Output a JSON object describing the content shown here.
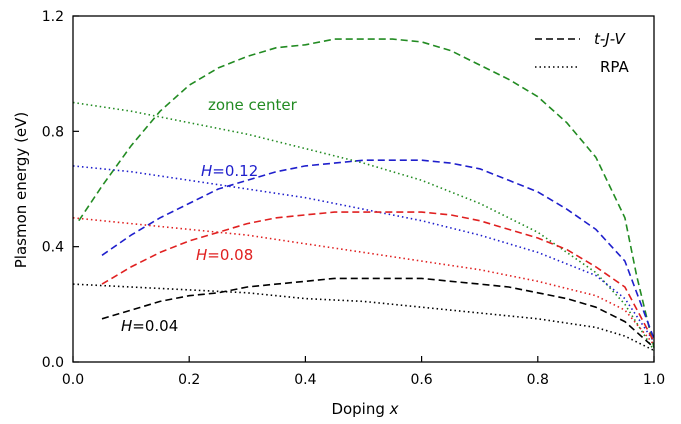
{
  "chart_data": {
    "type": "line",
    "xlabel_main": "Doping",
    "xlabel_var": "x",
    "ylabel": "Plasmon energy (eV)",
    "xlim": [
      0.0,
      1.0
    ],
    "ylim": [
      0.0,
      1.2
    ],
    "xticks": [
      "0.0",
      "0.2",
      "0.4",
      "0.6",
      "0.8",
      "1.0"
    ],
    "yticks": [
      "0.0",
      "0.4",
      "0.8",
      "1.2"
    ],
    "grid": false,
    "legend_position": "top-right",
    "legend": [
      {
        "label": "t-J-V",
        "style": "dashed"
      },
      {
        "label": "RPA",
        "style": "dotted"
      }
    ],
    "annotations": [
      {
        "text": "zone center",
        "color": "#228b22"
      },
      {
        "text_var": "H",
        "text_val": "=0.12",
        "color": "#1f1fcc"
      },
      {
        "text_var": "H",
        "text_val": "=0.08",
        "color": "#e02020"
      },
      {
        "text_var": "H",
        "text_val": "=0.04",
        "color": "#000000"
      }
    ],
    "series": [
      {
        "group": "zone center",
        "method": "t-J-V",
        "style": "dashed",
        "color": "#228b22",
        "x": [
          0.01,
          0.05,
          0.1,
          0.15,
          0.2,
          0.25,
          0.3,
          0.35,
          0.4,
          0.45,
          0.5,
          0.55,
          0.6,
          0.65,
          0.7,
          0.75,
          0.8,
          0.85,
          0.9,
          0.95,
          0.97,
          1.0
        ],
        "y": [
          0.49,
          0.61,
          0.75,
          0.87,
          0.96,
          1.02,
          1.06,
          1.09,
          1.1,
          1.12,
          1.12,
          1.12,
          1.11,
          1.08,
          1.03,
          0.98,
          0.92,
          0.83,
          0.71,
          0.5,
          0.3,
          0.05
        ]
      },
      {
        "group": "zone center",
        "method": "RPA",
        "style": "dotted",
        "color": "#228b22",
        "x": [
          0.0,
          0.1,
          0.2,
          0.3,
          0.4,
          0.5,
          0.6,
          0.7,
          0.8,
          0.9,
          0.95,
          1.0
        ],
        "y": [
          0.9,
          0.87,
          0.83,
          0.79,
          0.74,
          0.69,
          0.63,
          0.55,
          0.45,
          0.31,
          0.2,
          0.04
        ]
      },
      {
        "group": "H=0.12",
        "method": "t-J-V",
        "style": "dashed",
        "color": "#1f1fcc",
        "x": [
          0.05,
          0.1,
          0.15,
          0.2,
          0.25,
          0.3,
          0.35,
          0.4,
          0.45,
          0.5,
          0.55,
          0.6,
          0.65,
          0.7,
          0.75,
          0.8,
          0.85,
          0.9,
          0.95,
          1.0
        ],
        "y": [
          0.37,
          0.44,
          0.5,
          0.55,
          0.6,
          0.63,
          0.66,
          0.68,
          0.69,
          0.7,
          0.7,
          0.7,
          0.69,
          0.67,
          0.63,
          0.59,
          0.53,
          0.46,
          0.35,
          0.08
        ]
      },
      {
        "group": "H=0.12",
        "method": "RPA",
        "style": "dotted",
        "color": "#1f1fcc",
        "x": [
          0.0,
          0.1,
          0.2,
          0.3,
          0.4,
          0.5,
          0.6,
          0.7,
          0.8,
          0.9,
          0.95,
          1.0
        ],
        "y": [
          0.68,
          0.66,
          0.63,
          0.6,
          0.57,
          0.53,
          0.49,
          0.44,
          0.38,
          0.3,
          0.22,
          0.07
        ]
      },
      {
        "group": "H=0.08",
        "method": "t-J-V",
        "style": "dashed",
        "color": "#e02020",
        "x": [
          0.05,
          0.1,
          0.15,
          0.2,
          0.25,
          0.3,
          0.35,
          0.4,
          0.45,
          0.5,
          0.55,
          0.6,
          0.65,
          0.7,
          0.75,
          0.8,
          0.85,
          0.9,
          0.95,
          1.0
        ],
        "y": [
          0.27,
          0.33,
          0.38,
          0.42,
          0.45,
          0.48,
          0.5,
          0.51,
          0.52,
          0.52,
          0.52,
          0.52,
          0.51,
          0.49,
          0.46,
          0.43,
          0.39,
          0.33,
          0.26,
          0.07
        ]
      },
      {
        "group": "H=0.08",
        "method": "RPA",
        "style": "dotted",
        "color": "#e02020",
        "x": [
          0.0,
          0.1,
          0.2,
          0.3,
          0.4,
          0.5,
          0.6,
          0.7,
          0.8,
          0.9,
          0.95,
          1.0
        ],
        "y": [
          0.5,
          0.48,
          0.46,
          0.44,
          0.41,
          0.38,
          0.35,
          0.32,
          0.28,
          0.23,
          0.18,
          0.06
        ]
      },
      {
        "group": "H=0.04",
        "method": "t-J-V",
        "style": "dashed",
        "color": "#000000",
        "x": [
          0.05,
          0.1,
          0.15,
          0.2,
          0.25,
          0.3,
          0.35,
          0.4,
          0.45,
          0.5,
          0.55,
          0.6,
          0.65,
          0.7,
          0.75,
          0.8,
          0.85,
          0.9,
          0.95,
          1.0
        ],
        "y": [
          0.15,
          0.18,
          0.21,
          0.23,
          0.24,
          0.26,
          0.27,
          0.28,
          0.29,
          0.29,
          0.29,
          0.29,
          0.28,
          0.27,
          0.26,
          0.24,
          0.22,
          0.19,
          0.14,
          0.05
        ]
      },
      {
        "group": "H=0.04",
        "method": "RPA",
        "style": "dotted",
        "color": "#000000",
        "x": [
          0.0,
          0.1,
          0.2,
          0.3,
          0.4,
          0.5,
          0.6,
          0.7,
          0.8,
          0.9,
          0.95,
          1.0
        ],
        "y": [
          0.27,
          0.26,
          0.25,
          0.24,
          0.22,
          0.21,
          0.19,
          0.17,
          0.15,
          0.12,
          0.09,
          0.04
        ]
      }
    ]
  }
}
